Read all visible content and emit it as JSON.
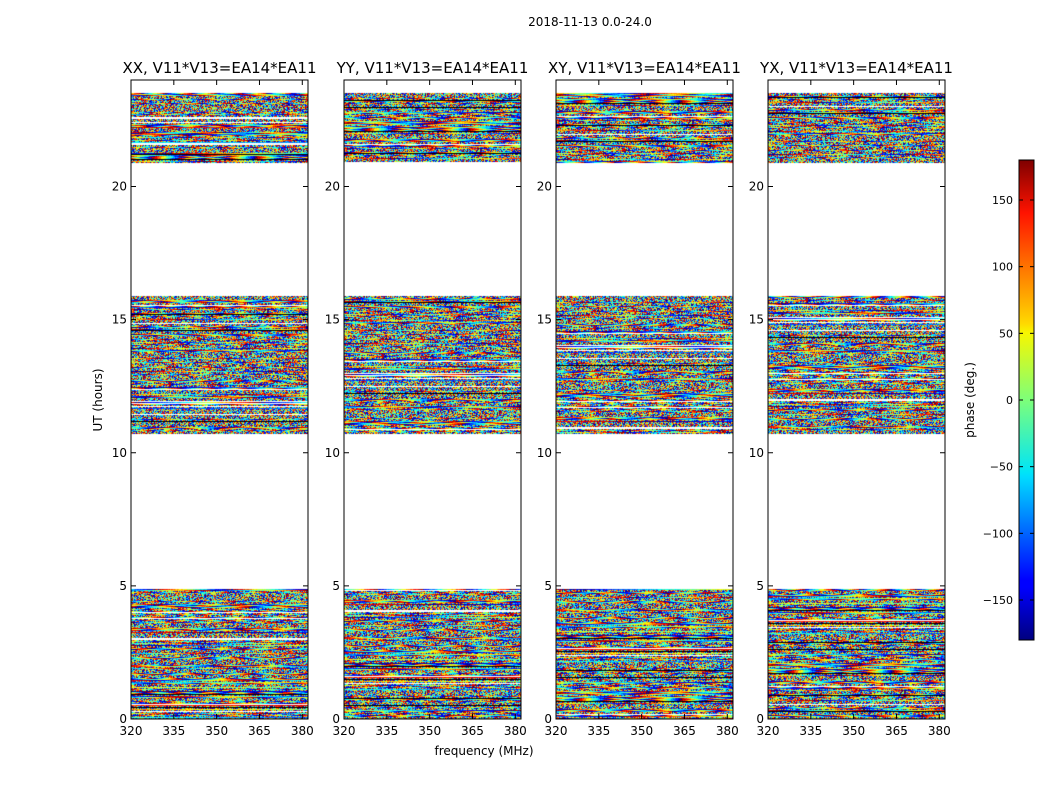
{
  "figure_title": "2018-11-13 0.0-24.0",
  "chart_data": {
    "type": "heatmap",
    "suptitle": "2018-11-13 0.0-24.0",
    "xlabel": "frequency (MHz)",
    "ylabel": "UT (hours)",
    "xlim": [
      320,
      382
    ],
    "ylim": [
      0,
      24
    ],
    "x_ticks": [
      320,
      335,
      350,
      365,
      380
    ],
    "y_ticks": [
      0,
      5,
      10,
      15,
      20
    ],
    "panels": [
      {
        "title": "XX, V11*V13=EA14*EA11"
      },
      {
        "title": "YY, V11*V13=EA14*EA11"
      },
      {
        "title": "XY, V11*V13=EA14*EA11"
      },
      {
        "title": "YX, V11*V13=EA14*EA11"
      }
    ],
    "data_coverage_hours": [
      [
        0,
        4.9
      ],
      [
        10.7,
        15.9
      ],
      [
        20.9,
        23.5
      ]
    ],
    "colorbar": {
      "label": "phase (deg.)",
      "range": [
        -180,
        180
      ],
      "ticks": [
        -150,
        -100,
        -50,
        0,
        50,
        100,
        150
      ],
      "colormap": "jet"
    }
  }
}
